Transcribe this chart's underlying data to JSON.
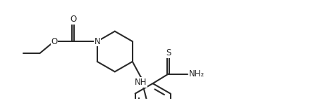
{
  "bg_color": "#ffffff",
  "line_color": "#2a2a2a",
  "line_width": 1.5,
  "font_size": 8.5,
  "figsize": [
    4.41,
    1.47
  ],
  "dpi": 100,
  "xlim": [
    0.5,
    13.5
  ],
  "ylim": [
    0.2,
    4.2
  ]
}
